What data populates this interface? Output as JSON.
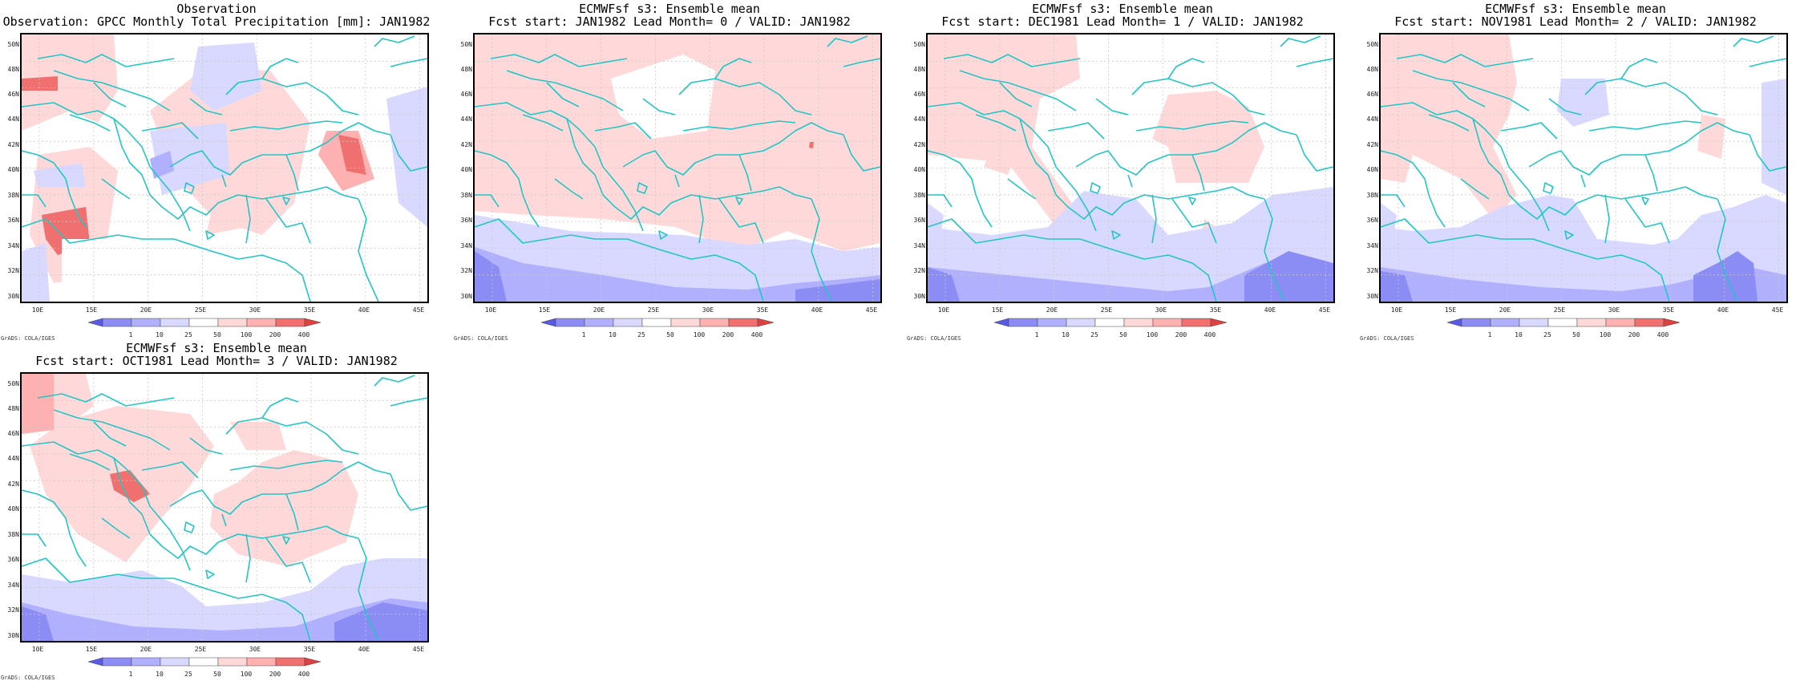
{
  "panels": [
    {
      "title1": "Observation",
      "title2": "Observation: GPCC Monthly Total Precipitation [mm]: JAN1982"
    },
    {
      "title1": "ECMWFsf s3: Ensemble mean",
      "title2": "Fcst start: JAN1982  Lead Month= 0 / VALID: JAN1982"
    },
    {
      "title1": "ECMWFsf s3: Ensemble mean",
      "title2": "Fcst start: DEC1981  Lead Month= 1 / VALID: JAN1982"
    },
    {
      "title1": "ECMWFsf s3: Ensemble mean",
      "title2": "Fcst start: NOV1981  Lead Month= 2 / VALID: JAN1982"
    },
    {
      "title1": "ECMWFsf s3: Ensemble mean",
      "title2": "Fcst start: OCT1981  Lead Month= 3 / VALID: JAN1982"
    }
  ],
  "lat_labels": [
    "50N",
    "48N",
    "46N",
    "44N",
    "42N",
    "40N",
    "38N",
    "36N",
    "34N",
    "32N",
    "30N"
  ],
  "lon_labels": [
    "10E",
    "15E",
    "20E",
    "25E",
    "30E",
    "35E",
    "40E",
    "45E"
  ],
  "colorbar_labels": [
    "1",
    "10",
    "25",
    "50",
    "100",
    "200",
    "400"
  ],
  "credit": "GrADS: COLA/IGES",
  "colors": {
    "coast": "#22c6c6",
    "grid": "#c8c8c8",
    "pos_light": "#ffd9d9",
    "pos_mid": "#ffb0b0",
    "pos_strong": "#f07070",
    "neg_light": "#d9d9ff",
    "neg_mid": "#b0b0ff",
    "neg_strong": "#8c8cf5"
  }
}
